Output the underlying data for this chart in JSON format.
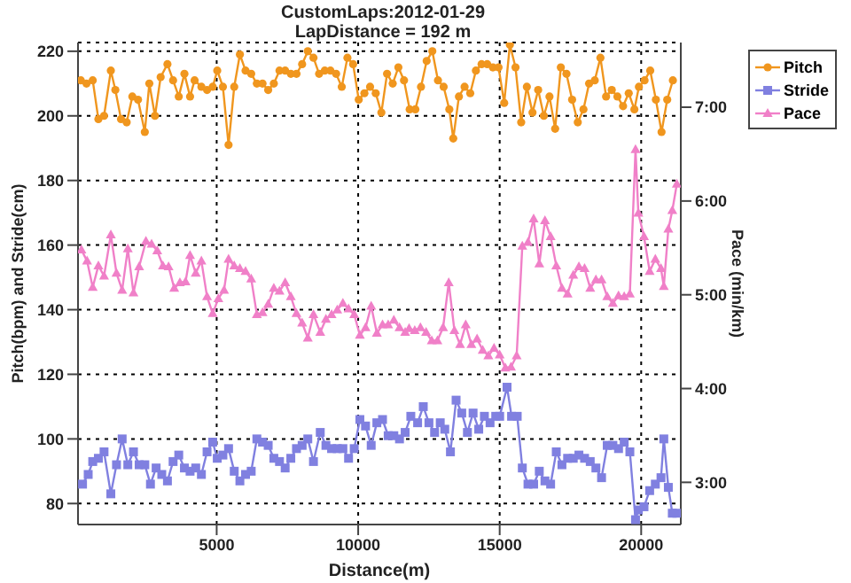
{
  "chart_data": {
    "type": "line",
    "title": "CustomLaps:2012-01-29",
    "subtitle": "LapDistance = 192 m",
    "xlabel": "Distance(m)",
    "ylabel": "Pitch(bpm) and Stride(cm)",
    "y2label": "Pace (min/km)",
    "xlim": [
      100,
      21400
    ],
    "xticks": [
      5000,
      10000,
      15000,
      20000
    ],
    "ylim": [
      73.5,
      222.7
    ],
    "yticks": [
      80,
      100,
      120,
      140,
      160,
      180,
      200,
      220
    ],
    "y2lim": [
      2.55,
      7.69
    ],
    "y2ticks": [
      {
        "value": 3,
        "label": "3:00"
      },
      {
        "value": 4,
        "label": "4:00"
      },
      {
        "value": 5,
        "label": "5:00"
      },
      {
        "value": 6,
        "label": "6:00"
      },
      {
        "value": 7,
        "label": "7:00"
      }
    ],
    "grid": true,
    "legend": "right",
    "line_style": "solid",
    "series": [
      {
        "name": "Pitch",
        "color": "#f0961e",
        "marker": "circle",
        "x": [
          200,
          400,
          620,
          820,
          1020,
          1260,
          1420,
          1620,
          1820,
          2020,
          2220,
          2460,
          2620,
          2820,
          3020,
          3260,
          3460,
          3660,
          3860,
          4060,
          4220,
          4460,
          4660,
          4860,
          5020,
          5220,
          5420,
          5620,
          5820,
          6020,
          6220,
          6420,
          6620,
          6820,
          7020,
          7220,
          7420,
          7620,
          7820,
          8020,
          8220,
          8420,
          8620,
          8820,
          9020,
          9220,
          9420,
          9620,
          9820,
          10020,
          10220,
          10420,
          10620,
          10820,
          11020,
          11220,
          11420,
          11620,
          11820,
          12020,
          12220,
          12420,
          12620,
          12820,
          13020,
          13220,
          13360,
          13560,
          13760,
          13960,
          14160,
          14360,
          14560,
          14760,
          14960,
          15160,
          15360,
          15560,
          15760,
          15960,
          16160,
          16360,
          16560,
          16760,
          16960,
          17160,
          17360,
          17560,
          17760,
          17960,
          18160,
          18360,
          18560,
          18760,
          18960,
          19160,
          19360,
          19560,
          19760,
          19920,
          20120,
          20320,
          20520,
          20720,
          20920,
          21120
        ],
        "values": [
          211,
          210,
          211,
          199,
          200,
          214,
          208,
          199,
          198,
          206,
          205,
          195,
          210,
          200,
          212,
          216,
          211,
          206,
          213,
          206,
          211,
          209,
          208,
          209,
          214,
          209,
          191,
          209,
          219,
          214,
          213,
          210,
          210,
          208,
          210,
          214,
          214,
          213,
          213,
          216,
          220,
          218,
          213,
          214,
          214,
          213,
          209,
          218,
          216,
          205,
          207,
          209,
          207,
          201,
          213,
          210,
          215,
          211,
          202,
          202,
          209,
          217,
          220,
          211,
          209,
          202,
          193,
          206,
          209,
          207,
          214,
          216,
          216,
          215,
          215,
          204,
          222,
          215,
          198,
          209,
          201,
          208,
          200,
          206,
          196,
          215,
          213,
          205,
          198,
          202,
          210,
          211,
          218,
          206,
          208,
          206,
          203,
          207,
          202,
          209,
          211,
          214,
          205,
          195,
          205,
          211
        ]
      },
      {
        "name": "Stride",
        "color": "#8080e0",
        "marker": "square",
        "x": [
          260,
          460,
          620,
          820,
          1020,
          1260,
          1460,
          1660,
          1860,
          2060,
          2260,
          2460,
          2660,
          2860,
          3060,
          3260,
          3460,
          3660,
          3860,
          4060,
          4260,
          4460,
          4660,
          4860,
          5020,
          5220,
          5420,
          5620,
          5820,
          6020,
          6220,
          6420,
          6620,
          6820,
          7020,
          7220,
          7420,
          7620,
          7820,
          8020,
          8220,
          8420,
          8660,
          8860,
          9060,
          9260,
          9460,
          9660,
          9860,
          10060,
          10260,
          10460,
          10660,
          10860,
          11060,
          11260,
          11460,
          11660,
          11860,
          12100,
          12300,
          12500,
          12700,
          12900,
          13060,
          13260,
          13460,
          13660,
          13860,
          14060,
          14260,
          14460,
          14660,
          14860,
          15000,
          15260,
          15420,
          15620,
          15800,
          16000,
          16200,
          16400,
          16600,
          16800,
          17000,
          17200,
          17400,
          17600,
          17800,
          18000,
          18200,
          18400,
          18600,
          18800,
          19000,
          19200,
          19400,
          19600,
          19800,
          19900,
          20100,
          20300,
          20500,
          20700,
          20800,
          20960,
          21100,
          21260
        ],
        "values": [
          86,
          89,
          93,
          94,
          96,
          83,
          92,
          100,
          92,
          96,
          92,
          92,
          86,
          91,
          89,
          87,
          93,
          95,
          91,
          90,
          91,
          89,
          96,
          99,
          94,
          95,
          97,
          90,
          87,
          89,
          90,
          100,
          99,
          98,
          94,
          93,
          91,
          94,
          97,
          98,
          100,
          93,
          102,
          98,
          97,
          97,
          97,
          94,
          97,
          106,
          104,
          98,
          105,
          106,
          101,
          101,
          100,
          102,
          107,
          105,
          110,
          105,
          102,
          105,
          103,
          96,
          112,
          108,
          102,
          108,
          103,
          107,
          105,
          107,
          107,
          116,
          107,
          107,
          91,
          86,
          86,
          90,
          87,
          86,
          96,
          92,
          94,
          94,
          95,
          94,
          93,
          91,
          88,
          98,
          98,
          97,
          99,
          96,
          75,
          78,
          79,
          84,
          86,
          88,
          100,
          85,
          77,
          77
        ]
      },
      {
        "name": "Pace",
        "color": "#f080c8",
        "marker": "triangle",
        "axis": "y2",
        "x": [
          220,
          420,
          620,
          820,
          1020,
          1260,
          1460,
          1660,
          1860,
          2060,
          2260,
          2500,
          2700,
          2900,
          3100,
          3300,
          3500,
          3700,
          3900,
          4060,
          4260,
          4460,
          4660,
          4860,
          5060,
          5260,
          5420,
          5620,
          5820,
          6020,
          6220,
          6420,
          6620,
          6820,
          7020,
          7220,
          7420,
          7620,
          7820,
          8020,
          8220,
          8420,
          8660,
          8860,
          9060,
          9260,
          9460,
          9660,
          9860,
          10060,
          10260,
          10460,
          10660,
          10860,
          11060,
          11260,
          11460,
          11660,
          11800,
          12000,
          12200,
          12400,
          12600,
          12800,
          13000,
          13200,
          13400,
          13600,
          13800,
          14000,
          14200,
          14400,
          14600,
          14800,
          15000,
          15200,
          15400,
          15600,
          15800,
          16000,
          16200,
          16400,
          16600,
          16800,
          17000,
          17200,
          17400,
          17600,
          17800,
          18000,
          18200,
          18400,
          18600,
          18800,
          19000,
          19200,
          19400,
          19600,
          19800,
          19900,
          20100,
          20300,
          20500,
          20700,
          20800,
          20960,
          21100,
          21260
        ],
        "values": [
          5.48,
          5.36,
          5.08,
          5.31,
          5.2,
          5.64,
          5.23,
          5.05,
          5.49,
          5.02,
          5.3,
          5.57,
          5.54,
          5.47,
          5.31,
          5.3,
          5.07,
          5.13,
          5.14,
          5.42,
          5.23,
          5.36,
          4.98,
          4.8,
          4.96,
          5.05,
          5.38,
          5.31,
          5.28,
          5.25,
          5.17,
          4.79,
          4.81,
          4.9,
          5.07,
          5.04,
          5.13,
          4.98,
          4.8,
          4.7,
          4.54,
          4.79,
          4.6,
          4.74,
          4.79,
          4.84,
          4.91,
          4.85,
          4.79,
          4.57,
          4.65,
          4.88,
          4.59,
          4.68,
          4.68,
          4.73,
          4.65,
          4.6,
          4.64,
          4.62,
          4.65,
          4.6,
          4.51,
          4.51,
          4.65,
          5.13,
          4.62,
          4.47,
          4.68,
          4.47,
          4.53,
          4.41,
          4.35,
          4.43,
          4.36,
          4.22,
          4.23,
          4.35,
          5.52,
          5.56,
          5.81,
          5.33,
          5.79,
          5.62,
          5.31,
          5.07,
          5.01,
          5.21,
          5.3,
          5.28,
          5.07,
          5.16,
          5.16,
          4.98,
          4.91,
          4.99,
          4.98,
          5.01,
          6.55,
          5.87,
          5.62,
          5.25,
          5.38,
          5.28,
          5.09,
          5.7,
          5.9,
          6.18
        ]
      }
    ]
  }
}
